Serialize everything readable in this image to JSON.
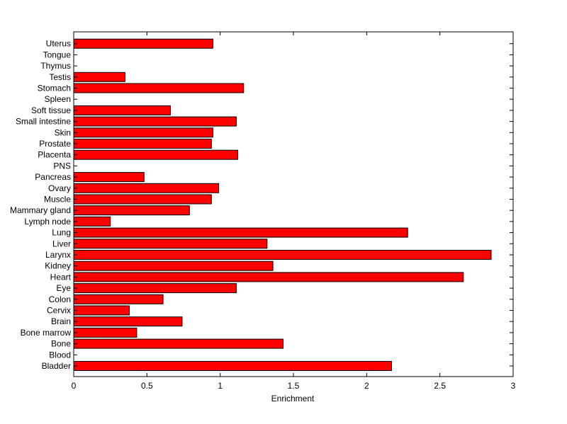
{
  "chart_data": {
    "type": "bar",
    "orientation": "horizontal",
    "title": "",
    "xlabel": "Enrichment",
    "ylabel": "",
    "xlim": [
      0,
      3
    ],
    "xticks": [
      0,
      0.5,
      1,
      1.5,
      2,
      2.5,
      3
    ],
    "xtick_labels": [
      "0",
      "0.5",
      "1",
      "1.5",
      "2",
      "2.5",
      "3"
    ],
    "grid": false,
    "legend": "none",
    "bar_color": "#ff0000",
    "categories": [
      "Bladder",
      "Blood",
      "Bone",
      "Bone marrow",
      "Brain",
      "Cervix",
      "Colon",
      "Eye",
      "Heart",
      "Kidney",
      "Larynx",
      "Liver",
      "Lung",
      "Lymph node",
      "Mammary gland",
      "Muscle",
      "Ovary",
      "Pancreas",
      "PNS",
      "Placenta",
      "Prostate",
      "Skin",
      "Small intestine",
      "Soft tissue",
      "Spleen",
      "Stomach",
      "Testis",
      "Thymus",
      "Tongue",
      "Uterus"
    ],
    "values": [
      2.17,
      0,
      1.43,
      0.43,
      0.74,
      0.38,
      0.61,
      1.11,
      2.66,
      1.36,
      2.85,
      1.32,
      2.28,
      0.25,
      0.79,
      0.94,
      0.99,
      0.48,
      0,
      1.12,
      0.94,
      0.95,
      1.11,
      0.66,
      0,
      1.16,
      0.35,
      0,
      0,
      0.95
    ]
  }
}
